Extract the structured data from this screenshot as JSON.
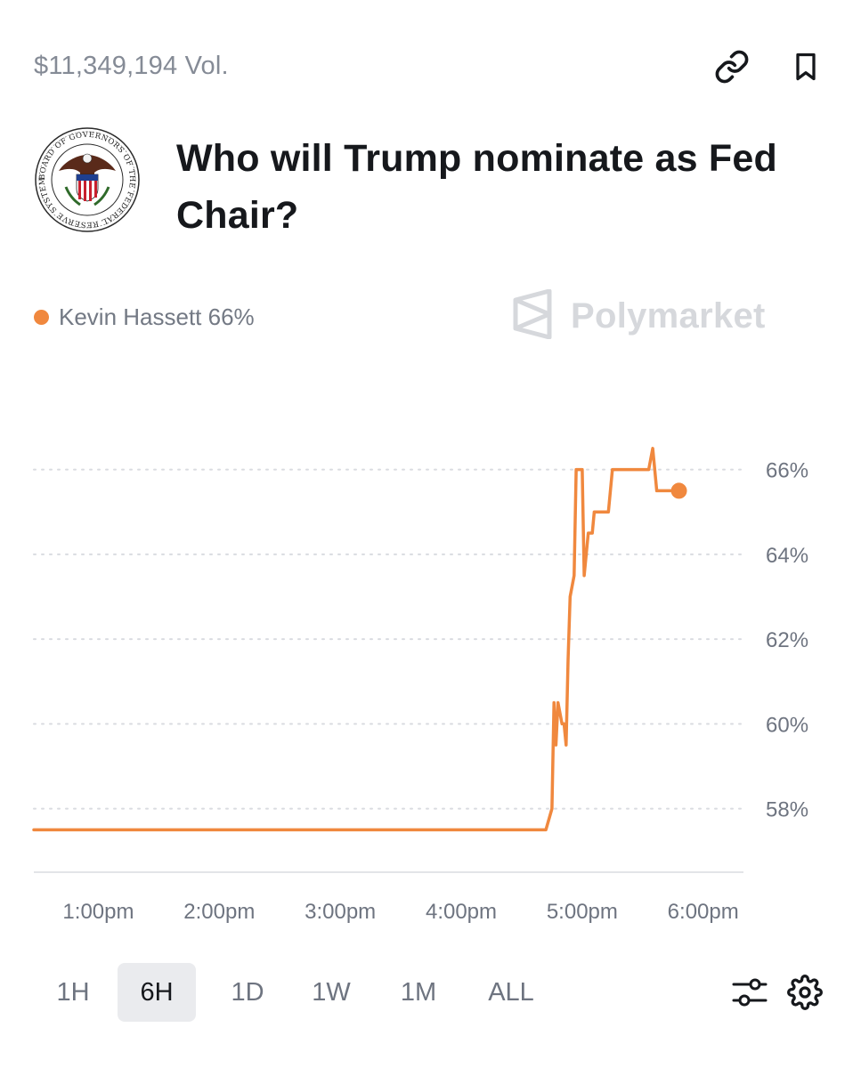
{
  "market": {
    "volume": "$11,349,194 Vol.",
    "title": "Who will Trump nominate as Fed Chair?",
    "seal_text": "BOARD OF GOVERNORS OF THE FEDERAL RESERVE SYSTEM",
    "brand": "Polymarket"
  },
  "legend": {
    "label": "Kevin Hassett 66%",
    "color": "#f0883e"
  },
  "colors": {
    "accent": "#f0883e",
    "grid": "#d9dbe0",
    "tick_text": "#6e7480"
  },
  "chart_data": {
    "type": "line",
    "series": [
      {
        "name": "Kevin Hassett",
        "color": "#f0883e",
        "points": [
          [
            "12:28pm",
            57.5
          ],
          [
            "4:42pm",
            57.5
          ],
          [
            "4:45pm",
            58.0
          ],
          [
            "4:46pm",
            60.5
          ],
          [
            "4:47pm",
            59.5
          ],
          [
            "4:48pm",
            60.5
          ],
          [
            "4:50pm",
            60.0
          ],
          [
            "4:51pm",
            60.0
          ],
          [
            "4:52pm",
            59.5
          ],
          [
            "4:53pm",
            61.5
          ],
          [
            "4:54pm",
            63.0
          ],
          [
            "4:56pm",
            63.5
          ],
          [
            "4:57pm",
            66.0
          ],
          [
            "5:00pm",
            66.0
          ],
          [
            "5:01pm",
            63.5
          ],
          [
            "5:03pm",
            64.5
          ],
          [
            "5:05pm",
            64.5
          ],
          [
            "5:06pm",
            65.0
          ],
          [
            "5:13pm",
            65.0
          ],
          [
            "5:15pm",
            66.0
          ],
          [
            "5:33pm",
            66.0
          ],
          [
            "5:35pm",
            66.5
          ],
          [
            "5:37pm",
            65.5
          ],
          [
            "5:48pm",
            65.5
          ]
        ]
      }
    ],
    "x_ticks": [
      "1:00pm",
      "2:00pm",
      "3:00pm",
      "4:00pm",
      "5:00pm",
      "6:00pm"
    ],
    "y_ticks": [
      "58%",
      "60%",
      "62%",
      "64%",
      "66%"
    ],
    "ylim": [
      56.5,
      67
    ],
    "xlim": [
      "12:28pm",
      "6:20pm"
    ],
    "grid": "horizontal dotted",
    "legend_position": "top-left"
  },
  "ranges": [
    {
      "label": "1H",
      "active": false
    },
    {
      "label": "6H",
      "active": true
    },
    {
      "label": "1D",
      "active": false
    },
    {
      "label": "1W",
      "active": false
    },
    {
      "label": "1M",
      "active": false
    },
    {
      "label": "ALL",
      "active": false
    }
  ],
  "icons": {
    "copy_link": "link-icon",
    "bookmark": "bookmark-icon",
    "filters": "sliders-icon",
    "settings": "gear-icon",
    "brand": "polymarket-logo-icon"
  }
}
